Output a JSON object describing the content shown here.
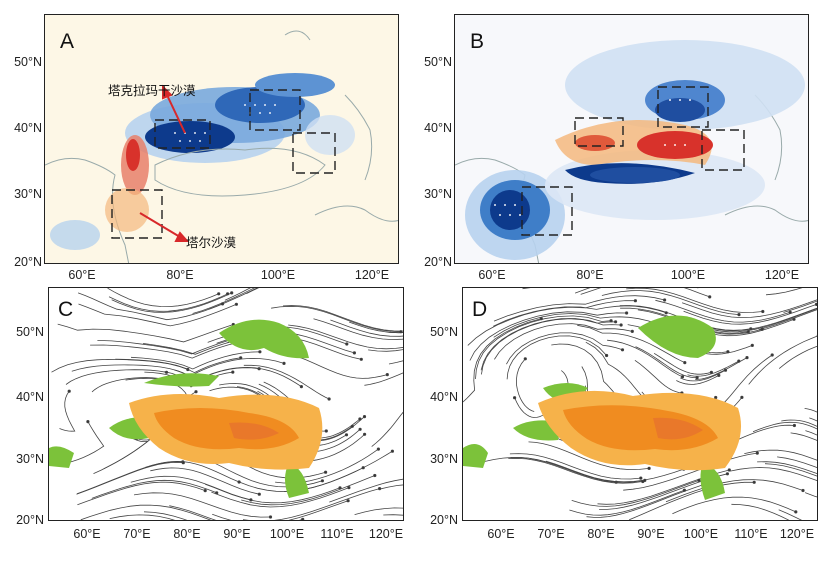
{
  "panels": [
    {
      "id": "A",
      "label": "A",
      "y_ticks": [
        "50°N",
        "40°N",
        "30°N",
        "20°N"
      ],
      "x_ticks": [
        "60°E",
        "80°E",
        "100°E",
        "120°E"
      ],
      "annotations": {
        "taklamakan": "塔克拉玛干沙漠",
        "thar": "塔尔沙漠"
      }
    },
    {
      "id": "B",
      "label": "B",
      "y_ticks": [
        "50°N",
        "40°N",
        "30°N",
        "20°N"
      ],
      "x_ticks": [
        "60°E",
        "80°E",
        "100°E",
        "120°E"
      ]
    },
    {
      "id": "C",
      "label": "C",
      "y_ticks": [
        "50°N",
        "40°N",
        "30°N",
        "20°N"
      ],
      "x_ticks": [
        "60°E",
        "70°E",
        "80°E",
        "90°E",
        "100°E",
        "110°E",
        "120°E"
      ]
    },
    {
      "id": "D",
      "label": "D",
      "y_ticks": [
        "50°N",
        "40°N",
        "30°N",
        "20°N"
      ],
      "x_ticks": [
        "60°E",
        "70°E",
        "80°E",
        "90°E",
        "100°E",
        "110°E",
        "120°E"
      ]
    }
  ],
  "colors": {
    "sand": "#fdf6e3",
    "blue_dark": "#0d3a8c",
    "blue_mid": "#3f7ec8",
    "blue_light": "#b7d2ee",
    "red": "#d8322b",
    "orange_light": "#f4b87e",
    "plateau_orange": "#f08c20",
    "plateau_light": "#f6b24a",
    "green": "#7cc23a",
    "stream": "#444444",
    "box_line": "#222222",
    "arrow": "#d8282a"
  }
}
